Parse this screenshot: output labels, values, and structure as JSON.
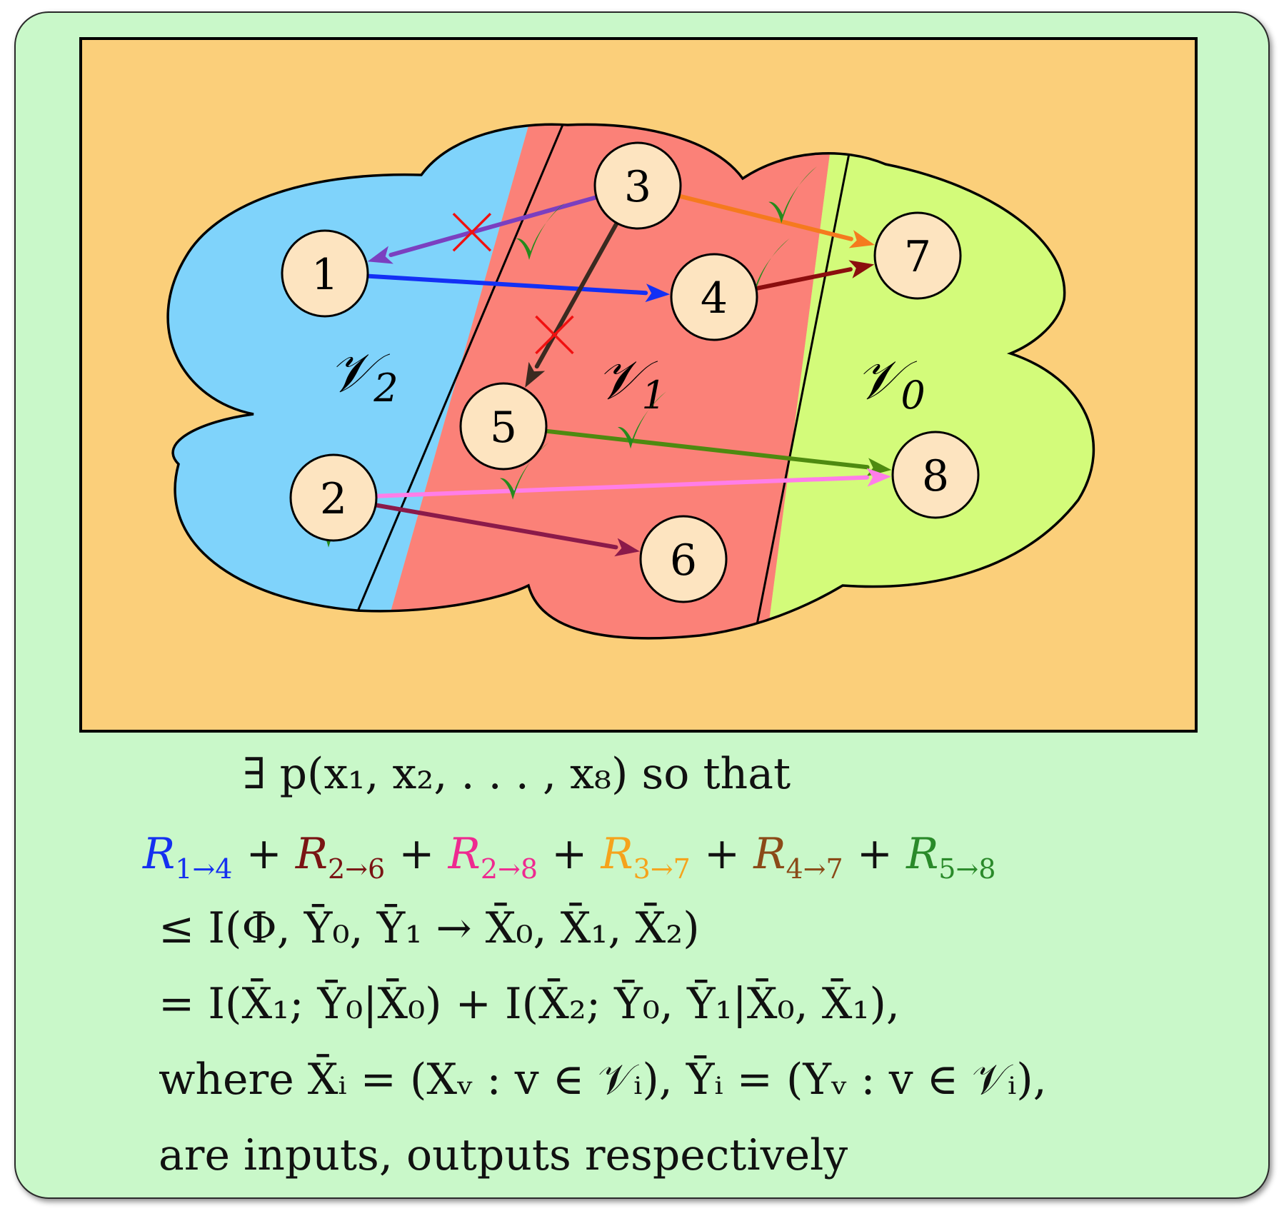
{
  "nodes": [
    {
      "id": "1",
      "label": "1",
      "region": "V2"
    },
    {
      "id": "2",
      "label": "2",
      "region": "V2"
    },
    {
      "id": "3",
      "label": "3",
      "region": "V1"
    },
    {
      "id": "4",
      "label": "4",
      "region": "V1"
    },
    {
      "id": "5",
      "label": "5",
      "region": "V1"
    },
    {
      "id": "6",
      "label": "6",
      "region": "V1"
    },
    {
      "id": "7",
      "label": "7",
      "region": "V0"
    },
    {
      "id": "8",
      "label": "8",
      "region": "V0"
    }
  ],
  "regions": {
    "v2": {
      "label": "𝒱",
      "sub": "2",
      "color": "#7fd3fb"
    },
    "v1": {
      "label": "𝒱",
      "sub": "1",
      "color": "#fb8178"
    },
    "v0": {
      "label": "𝒱",
      "sub": "0",
      "color": "#d3fb7a"
    }
  },
  "edges": [
    {
      "from": "3",
      "to": "1",
      "color": "#7b3fc0",
      "mark": "cross"
    },
    {
      "from": "1",
      "to": "4",
      "color": "#1330f5",
      "mark": "none"
    },
    {
      "from": "3",
      "to": "5",
      "color": "#3a2a20",
      "mark": "cross"
    },
    {
      "from": "3",
      "to": "7",
      "color": "#f57a1e",
      "mark": "check"
    },
    {
      "from": "4",
      "to": "7",
      "color": "#8b0e0e",
      "mark": "check"
    },
    {
      "from": "5",
      "to": "8",
      "color": "#4e8a10",
      "mark": "check"
    },
    {
      "from": "2",
      "to": "8",
      "color": "#ff7ee8",
      "mark": "check"
    },
    {
      "from": "2",
      "to": "6",
      "color": "#8b1a4a",
      "mark": "check"
    }
  ],
  "colors": {
    "background_box": "#fbcf7a",
    "card": "#c9f8c9",
    "check": "#268a1c",
    "cross": "#f01010",
    "node_fill": "#fde4c0"
  },
  "formula": {
    "line1": "∃ p(x₁, x₂, . . . , x₈) so that",
    "rates": [
      {
        "base": "R",
        "sub": "1→4",
        "color": "#1530f0"
      },
      {
        "base": "R",
        "sub": "2→6",
        "color": "#7a1414"
      },
      {
        "base": "R",
        "sub": "2→8",
        "color": "#ee2a90"
      },
      {
        "base": "R",
        "sub": "3→7",
        "color": "#f5a31c"
      },
      {
        "base": "R",
        "sub": "4→7",
        "color": "#8b4a18"
      },
      {
        "base": "R",
        "sub": "5→8",
        "color": "#2a8a2a"
      }
    ],
    "plus": "+",
    "line3": "≤ I(Φ, Ȳ₀, Ȳ₁ → X̄₀, X̄₁, X̄₂)",
    "line4": "= I(X̄₁; Ȳ₀|X̄₀) + I(X̄₂; Ȳ₀, Ȳ₁|X̄₀, X̄₁),",
    "line5": "where X̄ᵢ = (Xᵥ : v ∈ 𝒱ᵢ), Ȳᵢ = (Yᵥ : v ∈ 𝒱ᵢ),",
    "line6": "are inputs, outputs respectively"
  }
}
